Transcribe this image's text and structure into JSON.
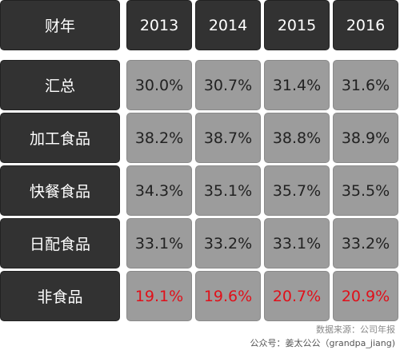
{
  "table": {
    "header": [
      "财年",
      "2013",
      "2014",
      "2015",
      "2016"
    ],
    "rows": [
      [
        "汇总",
        "30.0%",
        "30.7%",
        "31.4%",
        "31.6%"
      ],
      [
        "加工食品",
        "38.2%",
        "38.7%",
        "38.8%",
        "38.9%"
      ],
      [
        "快餐食品",
        "34.3%",
        "35.1%",
        "35.7%",
        "35.5%"
      ],
      [
        "日配食品",
        "33.1%",
        "33.2%",
        "33.1%",
        "33.2%"
      ],
      [
        "非食品",
        "19.1%",
        "19.6%",
        "20.7%",
        "20.9%"
      ]
    ]
  },
  "footer": {
    "source": "数据来源：公司年报",
    "credit": "公众号：姜太公公（grandpa_jiang)"
  }
}
